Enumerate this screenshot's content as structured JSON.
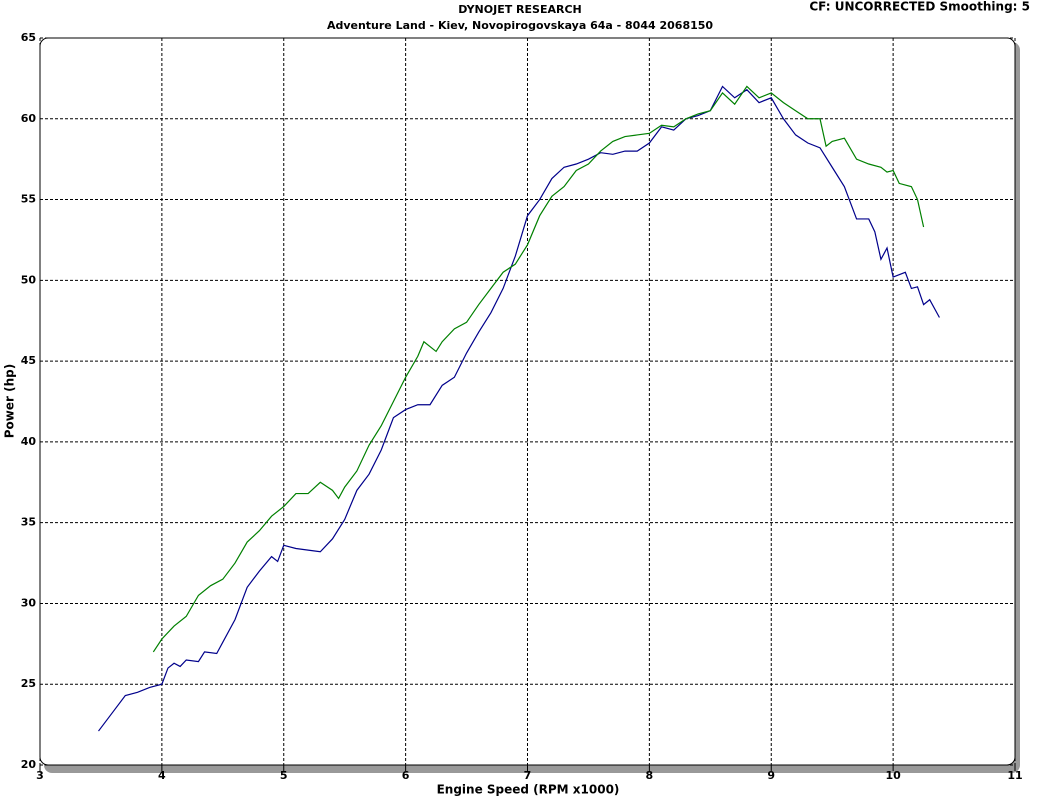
{
  "chart_data": {
    "type": "line",
    "title": "DYNOJET RESEARCH",
    "subtitle": "Adventure Land - Kiev, Novopirogovskaya 64a - 8044 2068150",
    "annotation": "CF: UNCORRECTED  Smoothing: 5",
    "x_label": "Engine Speed (RPM x1000)",
    "y_label": "Power (hp)",
    "xlim": [
      3,
      11
    ],
    "ylim": [
      20,
      65
    ],
    "xticks": [
      3,
      4,
      5,
      6,
      7,
      8,
      9,
      10,
      11
    ],
    "yticks": [
      20,
      25,
      30,
      35,
      40,
      45,
      50,
      55,
      60,
      65
    ],
    "grid": true,
    "series": [
      {
        "color": "#00008b",
        "x": [
          3.48,
          3.6,
          3.7,
          3.8,
          3.9,
          4.0,
          4.05,
          4.1,
          4.15,
          4.2,
          4.3,
          4.35,
          4.45,
          4.5,
          4.6,
          4.7,
          4.8,
          4.9,
          4.95,
          5.0,
          5.1,
          5.2,
          5.3,
          5.4,
          5.5,
          5.6,
          5.7,
          5.8,
          5.9,
          6.0,
          6.1,
          6.2,
          6.3,
          6.4,
          6.5,
          6.6,
          6.7,
          6.8,
          6.9,
          7.0,
          7.1,
          7.2,
          7.3,
          7.4,
          7.5,
          7.6,
          7.7,
          7.8,
          7.9,
          8.0,
          8.1,
          8.2,
          8.3,
          8.4,
          8.5,
          8.6,
          8.7,
          8.8,
          8.9,
          9.0,
          9.1,
          9.2,
          9.3,
          9.4,
          9.5,
          9.6,
          9.7,
          9.8,
          9.85,
          9.9,
          9.95,
          10.0,
          10.1,
          10.15,
          10.2,
          10.25,
          10.3,
          10.38
        ],
        "values": [
          22.1,
          23.3,
          24.3,
          24.5,
          24.8,
          25.0,
          26.0,
          26.3,
          26.1,
          26.5,
          26.4,
          27.0,
          26.9,
          27.6,
          29.0,
          31.0,
          32.0,
          32.9,
          32.6,
          33.6,
          33.4,
          33.3,
          33.2,
          34.0,
          35.2,
          37.0,
          38.0,
          39.5,
          41.5,
          42.0,
          42.3,
          42.3,
          43.5,
          44.0,
          45.5,
          46.8,
          48.0,
          49.5,
          51.5,
          54.0,
          55.0,
          56.3,
          57.0,
          57.2,
          57.5,
          57.9,
          57.8,
          58.0,
          58.0,
          58.5,
          59.5,
          59.3,
          60.0,
          60.2,
          60.5,
          62.0,
          61.3,
          61.8,
          61.0,
          61.3,
          60.0,
          59.0,
          58.5,
          58.2,
          57.0,
          55.8,
          53.8,
          53.8,
          53.0,
          51.3,
          52.0,
          50.2,
          50.5,
          49.5,
          49.6,
          48.5,
          48.8,
          47.7
        ]
      },
      {
        "color": "#008000",
        "x": [
          3.93,
          4.0,
          4.1,
          4.2,
          4.3,
          4.4,
          4.5,
          4.6,
          4.7,
          4.8,
          4.9,
          5.0,
          5.1,
          5.2,
          5.3,
          5.4,
          5.45,
          5.5,
          5.6,
          5.7,
          5.8,
          5.9,
          6.0,
          6.1,
          6.15,
          6.25,
          6.3,
          6.4,
          6.5,
          6.6,
          6.7,
          6.8,
          6.9,
          7.0,
          7.1,
          7.2,
          7.3,
          7.4,
          7.5,
          7.6,
          7.7,
          7.8,
          7.9,
          8.0,
          8.1,
          8.2,
          8.3,
          8.4,
          8.5,
          8.6,
          8.7,
          8.8,
          8.9,
          9.0,
          9.1,
          9.2,
          9.3,
          9.4,
          9.45,
          9.5,
          9.6,
          9.7,
          9.8,
          9.9,
          9.95,
          10.0,
          10.05,
          10.15,
          10.2,
          10.25
        ],
        "values": [
          27.0,
          27.8,
          28.6,
          29.2,
          30.5,
          31.1,
          31.5,
          32.5,
          33.8,
          34.5,
          35.4,
          36.0,
          36.8,
          36.8,
          37.5,
          37.0,
          36.5,
          37.2,
          38.2,
          39.8,
          41.0,
          42.5,
          44.0,
          45.3,
          46.2,
          45.6,
          46.2,
          47.0,
          47.4,
          48.5,
          49.5,
          50.5,
          51.0,
          52.2,
          54.0,
          55.2,
          55.8,
          56.8,
          57.2,
          58.0,
          58.6,
          58.9,
          59.0,
          59.1,
          59.6,
          59.5,
          60.0,
          60.3,
          60.5,
          61.6,
          60.9,
          62.0,
          61.3,
          61.6,
          61.0,
          60.5,
          60.0,
          60.0,
          58.3,
          58.6,
          58.8,
          57.5,
          57.2,
          57.0,
          56.7,
          56.8,
          56.0,
          55.8,
          55.0,
          53.3
        ]
      }
    ]
  }
}
